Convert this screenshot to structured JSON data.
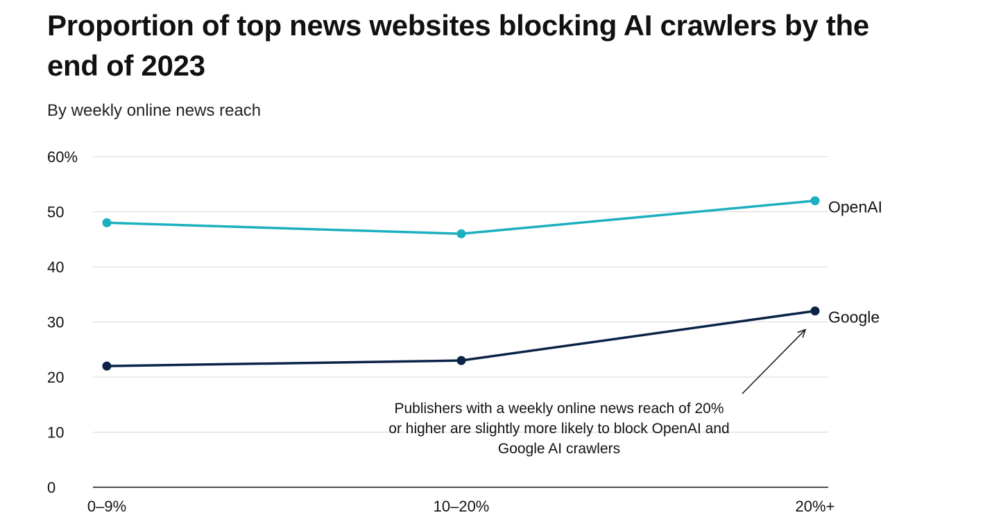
{
  "chart_data": {
    "type": "line",
    "title": "Proportion of top news websites blocking AI crawlers by the end of 2023",
    "subtitle": "By weekly online news reach",
    "categories": [
      "0–9%",
      "10–20%",
      "20%+"
    ],
    "y_ticks": [
      0,
      10,
      20,
      30,
      40,
      50,
      60
    ],
    "y_tick_labels": [
      "0",
      "10",
      "20",
      "30",
      "40",
      "50",
      "60%"
    ],
    "ylim": [
      0,
      60
    ],
    "xlabel": "",
    "ylabel": "",
    "grid": true,
    "series": [
      {
        "name": "OpenAI",
        "values": [
          48,
          46,
          52
        ],
        "color": "#1cafbf"
      },
      {
        "name": "Google",
        "values": [
          22,
          23,
          32
        ],
        "color": "#0a2346"
      }
    ],
    "annotation": {
      "lines": [
        "Publishers with a weekly online news reach of 20%",
        "or higher are slightly more likely to block OpenAI and",
        "Google AI crawlers"
      ],
      "points_to": {
        "series": "Google",
        "category": "20%+"
      }
    }
  }
}
